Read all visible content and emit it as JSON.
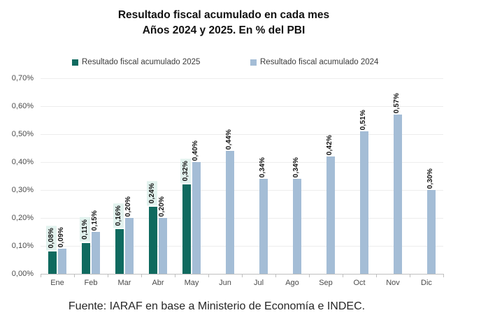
{
  "title": {
    "line1": "Resultado fiscal acumulado en cada mes",
    "line2": "Años 2024 y 2025. En % del PBI"
  },
  "legend": [
    {
      "label": "Resultado fiscal acumulado 2025",
      "color": "#0f6a5f"
    },
    {
      "label": "Resultado fiscal acumulado 2024",
      "color": "#a4bdd6"
    }
  ],
  "source": "Fuente: IARAF en base a Ministerio de Economía e INDEC.",
  "chart_data": {
    "type": "bar",
    "title": "Resultado fiscal acumulado en cada mes",
    "subtitle": "Años 2024 y 2025. En % del PBI",
    "categories": [
      "Ene",
      "Feb",
      "Mar",
      "Abr",
      "May",
      "Jun",
      "Jul",
      "Ago",
      "Sep",
      "Oct",
      "Nov",
      "Dic"
    ],
    "series": [
      {
        "name": "Resultado fiscal acumulado 2025",
        "color": "#0f6a5f",
        "label_bg": "#e2f2ee",
        "values": [
          0.08,
          0.11,
          0.16,
          0.24,
          0.32,
          null,
          null,
          null,
          null,
          null,
          null,
          null
        ],
        "labels": [
          "0,08%",
          "0,11%",
          "0,16%",
          "0,24%",
          "0,32%",
          null,
          null,
          null,
          null,
          null,
          null,
          null
        ]
      },
      {
        "name": "Resultado fiscal acumulado 2024",
        "color": "#a4bdd6",
        "label_bg": null,
        "values": [
          0.09,
          0.15,
          0.2,
          0.2,
          0.4,
          0.44,
          0.34,
          0.34,
          0.42,
          0.51,
          0.57,
          0.3
        ],
        "labels": [
          "0,09%",
          "0,15%",
          "0,20%",
          "0,20%",
          "0,40%",
          "0,44%",
          "0,34%",
          "0,34%",
          "0,42%",
          "0,51%",
          "0,57%",
          "0,30%"
        ]
      }
    ],
    "xlabel": "",
    "ylabel": "",
    "ylim": [
      0,
      0.7
    ],
    "ytick_step": 0.1,
    "yticks_bottom_up": [
      "0,00%",
      "0,10%",
      "0,20%",
      "0,30%",
      "0,40%",
      "0,50%",
      "0,60%",
      "0,70%"
    ],
    "grid": true,
    "legend_position": "top",
    "unit": "% del PBI"
  }
}
